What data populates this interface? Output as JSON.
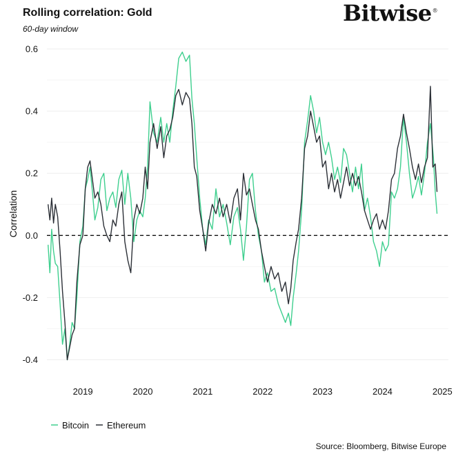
{
  "header": {
    "title": "Rolling correlation: Gold",
    "subtitle": "60-day window",
    "brand": "Bitwise",
    "brand_mark": "®"
  },
  "footer": {
    "source": "Source: Bloomberg, Bitwise Europe"
  },
  "colors": {
    "bitcoin": "#3ecf8e",
    "ethereum": "#2b2f36",
    "zero_line": "#111111",
    "grid": "#eeeeee"
  },
  "chart_data": {
    "type": "line",
    "title": "Rolling correlation: Gold",
    "subtitle": "60-day window",
    "ylabel": "Correlation",
    "xlabel": "",
    "xlim": [
      2018.4,
      2025.1
    ],
    "ylim": [
      -0.43,
      0.62
    ],
    "x_ticks": [
      2019,
      2020,
      2021,
      2022,
      2023,
      2024,
      2025
    ],
    "x_tick_labels": [
      "2019",
      "2020",
      "2021",
      "2022",
      "2023",
      "2024",
      "2025"
    ],
    "y_ticks": [
      0.6,
      0.4,
      0.2,
      0.0,
      -0.2,
      -0.4
    ],
    "y_tick_labels": [
      "0.6",
      "0.4",
      "0.2",
      "0.0",
      "-0.2",
      "-0.4"
    ],
    "reference_line": {
      "y": 0.0,
      "style": "dashed"
    },
    "grid": true,
    "legend": {
      "position": "bottom-left",
      "entries": [
        "Bitcoin",
        "Ethereum"
      ]
    },
    "series": [
      {
        "name": "Bitcoin",
        "color": "#3ecf8e",
        "points": [
          [
            2018.42,
            -0.03
          ],
          [
            2018.45,
            -0.12
          ],
          [
            2018.48,
            0.02
          ],
          [
            2018.51,
            -0.05
          ],
          [
            2018.54,
            -0.09
          ],
          [
            2018.58,
            -0.1
          ],
          [
            2018.62,
            -0.22
          ],
          [
            2018.66,
            -0.35
          ],
          [
            2018.7,
            -0.3
          ],
          [
            2018.74,
            -0.4
          ],
          [
            2018.78,
            -0.35
          ],
          [
            2018.82,
            -0.28
          ],
          [
            2018.86,
            -0.3
          ],
          [
            2018.9,
            -0.2
          ],
          [
            2018.95,
            -0.02
          ],
          [
            2019.0,
            0.03
          ],
          [
            2019.04,
            0.15
          ],
          [
            2019.08,
            0.18
          ],
          [
            2019.12,
            0.22
          ],
          [
            2019.16,
            0.14
          ],
          [
            2019.2,
            0.05
          ],
          [
            2019.25,
            0.09
          ],
          [
            2019.3,
            0.18
          ],
          [
            2019.35,
            0.2
          ],
          [
            2019.4,
            0.08
          ],
          [
            2019.45,
            0.12
          ],
          [
            2019.5,
            0.14
          ],
          [
            2019.55,
            0.09
          ],
          [
            2019.6,
            0.18
          ],
          [
            2019.65,
            0.21
          ],
          [
            2019.7,
            0.1
          ],
          [
            2019.75,
            0.2
          ],
          [
            2019.8,
            0.12
          ],
          [
            2019.85,
            -0.02
          ],
          [
            2019.9,
            0.05
          ],
          [
            2019.95,
            0.08
          ],
          [
            2020.0,
            0.06
          ],
          [
            2020.04,
            0.12
          ],
          [
            2020.08,
            0.22
          ],
          [
            2020.12,
            0.43
          ],
          [
            2020.18,
            0.33
          ],
          [
            2020.24,
            0.3
          ],
          [
            2020.3,
            0.38
          ],
          [
            2020.35,
            0.3
          ],
          [
            2020.4,
            0.36
          ],
          [
            2020.45,
            0.3
          ],
          [
            2020.5,
            0.4
          ],
          [
            2020.55,
            0.48
          ],
          [
            2020.6,
            0.57
          ],
          [
            2020.66,
            0.59
          ],
          [
            2020.72,
            0.56
          ],
          [
            2020.78,
            0.58
          ],
          [
            2020.82,
            0.44
          ],
          [
            2020.86,
            0.36
          ],
          [
            2020.9,
            0.25
          ],
          [
            2020.95,
            0.12
          ],
          [
            2021.0,
            0.02
          ],
          [
            2021.05,
            -0.03
          ],
          [
            2021.1,
            0.05
          ],
          [
            2021.16,
            0.02
          ],
          [
            2021.22,
            0.15
          ],
          [
            2021.28,
            0.06
          ],
          [
            2021.34,
            0.1
          ],
          [
            2021.4,
            0.04
          ],
          [
            2021.46,
            -0.03
          ],
          [
            2021.52,
            0.06
          ],
          [
            2021.58,
            0.09
          ],
          [
            2021.63,
            0.02
          ],
          [
            2021.68,
            -0.08
          ],
          [
            2021.73,
            0.03
          ],
          [
            2021.78,
            0.18
          ],
          [
            2021.83,
            0.2
          ],
          [
            2021.88,
            0.08
          ],
          [
            2021.93,
            0.0
          ],
          [
            2021.98,
            -0.05
          ],
          [
            2022.03,
            -0.15
          ],
          [
            2022.08,
            -0.12
          ],
          [
            2022.14,
            -0.18
          ],
          [
            2022.2,
            -0.17
          ],
          [
            2022.26,
            -0.22
          ],
          [
            2022.32,
            -0.25
          ],
          [
            2022.38,
            -0.28
          ],
          [
            2022.43,
            -0.25
          ],
          [
            2022.47,
            -0.29
          ],
          [
            2022.51,
            -0.2
          ],
          [
            2022.56,
            -0.12
          ],
          [
            2022.6,
            -0.05
          ],
          [
            2022.65,
            0.08
          ],
          [
            2022.7,
            0.3
          ],
          [
            2022.75,
            0.37
          ],
          [
            2022.8,
            0.45
          ],
          [
            2022.85,
            0.4
          ],
          [
            2022.9,
            0.33
          ],
          [
            2022.95,
            0.38
          ],
          [
            2023.0,
            0.3
          ],
          [
            2023.05,
            0.26
          ],
          [
            2023.1,
            0.3
          ],
          [
            2023.15,
            0.25
          ],
          [
            2023.2,
            0.18
          ],
          [
            2023.25,
            0.22
          ],
          [
            2023.3,
            0.17
          ],
          [
            2023.35,
            0.28
          ],
          [
            2023.4,
            0.26
          ],
          [
            2023.45,
            0.2
          ],
          [
            2023.5,
            0.14
          ],
          [
            2023.55,
            0.22
          ],
          [
            2023.6,
            0.15
          ],
          [
            2023.65,
            0.23
          ],
          [
            2023.7,
            0.08
          ],
          [
            2023.75,
            0.12
          ],
          [
            2023.8,
            0.06
          ],
          [
            2023.85,
            -0.02
          ],
          [
            2023.9,
            -0.05
          ],
          [
            2023.95,
            -0.1
          ],
          [
            2024.0,
            -0.02
          ],
          [
            2024.05,
            -0.05
          ],
          [
            2024.1,
            -0.03
          ],
          [
            2024.15,
            0.14
          ],
          [
            2024.2,
            0.12
          ],
          [
            2024.25,
            0.15
          ],
          [
            2024.3,
            0.22
          ],
          [
            2024.35,
            0.38
          ],
          [
            2024.4,
            0.3
          ],
          [
            2024.45,
            0.2
          ],
          [
            2024.5,
            0.12
          ],
          [
            2024.55,
            0.15
          ],
          [
            2024.6,
            0.19
          ],
          [
            2024.65,
            0.13
          ],
          [
            2024.7,
            0.2
          ],
          [
            2024.75,
            0.3
          ],
          [
            2024.8,
            0.36
          ],
          [
            2024.85,
            0.25
          ],
          [
            2024.88,
            0.14
          ],
          [
            2024.91,
            0.07
          ]
        ]
      },
      {
        "name": "Ethereum",
        "color": "#2b2f36",
        "points": [
          [
            2018.42,
            0.1
          ],
          [
            2018.45,
            0.05
          ],
          [
            2018.48,
            0.12
          ],
          [
            2018.51,
            0.04
          ],
          [
            2018.54,
            0.1
          ],
          [
            2018.58,
            0.06
          ],
          [
            2018.62,
            -0.05
          ],
          [
            2018.66,
            -0.18
          ],
          [
            2018.7,
            -0.28
          ],
          [
            2018.74,
            -0.4
          ],
          [
            2018.78,
            -0.36
          ],
          [
            2018.82,
            -0.32
          ],
          [
            2018.86,
            -0.3
          ],
          [
            2018.9,
            -0.15
          ],
          [
            2018.95,
            -0.03
          ],
          [
            2019.0,
            0.0
          ],
          [
            2019.04,
            0.15
          ],
          [
            2019.08,
            0.22
          ],
          [
            2019.12,
            0.24
          ],
          [
            2019.16,
            0.18
          ],
          [
            2019.2,
            0.12
          ],
          [
            2019.25,
            0.14
          ],
          [
            2019.3,
            0.1
          ],
          [
            2019.35,
            0.03
          ],
          [
            2019.4,
            0.0
          ],
          [
            2019.45,
            -0.02
          ],
          [
            2019.5,
            0.05
          ],
          [
            2019.55,
            0.03
          ],
          [
            2019.6,
            0.1
          ],
          [
            2019.65,
            0.14
          ],
          [
            2019.7,
            -0.02
          ],
          [
            2019.75,
            -0.08
          ],
          [
            2019.8,
            -0.12
          ],
          [
            2019.85,
            0.05
          ],
          [
            2019.9,
            0.1
          ],
          [
            2019.95,
            0.07
          ],
          [
            2020.0,
            0.12
          ],
          [
            2020.04,
            0.22
          ],
          [
            2020.08,
            0.15
          ],
          [
            2020.12,
            0.3
          ],
          [
            2020.18,
            0.36
          ],
          [
            2020.24,
            0.28
          ],
          [
            2020.3,
            0.35
          ],
          [
            2020.35,
            0.25
          ],
          [
            2020.4,
            0.32
          ],
          [
            2020.45,
            0.34
          ],
          [
            2020.5,
            0.38
          ],
          [
            2020.55,
            0.45
          ],
          [
            2020.6,
            0.47
          ],
          [
            2020.66,
            0.42
          ],
          [
            2020.72,
            0.46
          ],
          [
            2020.78,
            0.44
          ],
          [
            2020.82,
            0.36
          ],
          [
            2020.86,
            0.22
          ],
          [
            2020.9,
            0.19
          ],
          [
            2020.95,
            0.08
          ],
          [
            2021.0,
            0.02
          ],
          [
            2021.05,
            -0.05
          ],
          [
            2021.1,
            0.04
          ],
          [
            2021.16,
            0.1
          ],
          [
            2021.22,
            0.07
          ],
          [
            2021.28,
            0.12
          ],
          [
            2021.34,
            0.06
          ],
          [
            2021.4,
            0.1
          ],
          [
            2021.46,
            0.04
          ],
          [
            2021.52,
            0.12
          ],
          [
            2021.58,
            0.15
          ],
          [
            2021.63,
            0.05
          ],
          [
            2021.68,
            0.2
          ],
          [
            2021.73,
            0.13
          ],
          [
            2021.78,
            0.15
          ],
          [
            2021.83,
            0.1
          ],
          [
            2021.88,
            0.05
          ],
          [
            2021.93,
            0.02
          ],
          [
            2021.98,
            -0.05
          ],
          [
            2022.03,
            -0.1
          ],
          [
            2022.08,
            -0.15
          ],
          [
            2022.14,
            -0.1
          ],
          [
            2022.2,
            -0.14
          ],
          [
            2022.26,
            -0.12
          ],
          [
            2022.32,
            -0.18
          ],
          [
            2022.38,
            -0.15
          ],
          [
            2022.43,
            -0.22
          ],
          [
            2022.47,
            -0.17
          ],
          [
            2022.51,
            -0.08
          ],
          [
            2022.56,
            -0.02
          ],
          [
            2022.6,
            0.02
          ],
          [
            2022.65,
            0.12
          ],
          [
            2022.7,
            0.28
          ],
          [
            2022.75,
            0.32
          ],
          [
            2022.8,
            0.4
          ],
          [
            2022.85,
            0.35
          ],
          [
            2022.9,
            0.3
          ],
          [
            2022.95,
            0.32
          ],
          [
            2023.0,
            0.22
          ],
          [
            2023.05,
            0.24
          ],
          [
            2023.1,
            0.15
          ],
          [
            2023.15,
            0.2
          ],
          [
            2023.2,
            0.14
          ],
          [
            2023.25,
            0.18
          ],
          [
            2023.3,
            0.12
          ],
          [
            2023.35,
            0.17
          ],
          [
            2023.4,
            0.22
          ],
          [
            2023.45,
            0.16
          ],
          [
            2023.5,
            0.2
          ],
          [
            2023.55,
            0.16
          ],
          [
            2023.6,
            0.19
          ],
          [
            2023.65,
            0.14
          ],
          [
            2023.7,
            0.08
          ],
          [
            2023.75,
            0.05
          ],
          [
            2023.8,
            0.02
          ],
          [
            2023.85,
            0.05
          ],
          [
            2023.9,
            0.07
          ],
          [
            2023.95,
            0.02
          ],
          [
            2024.0,
            0.05
          ],
          [
            2024.05,
            0.02
          ],
          [
            2024.1,
            0.08
          ],
          [
            2024.15,
            0.18
          ],
          [
            2024.2,
            0.2
          ],
          [
            2024.25,
            0.28
          ],
          [
            2024.3,
            0.32
          ],
          [
            2024.35,
            0.39
          ],
          [
            2024.4,
            0.33
          ],
          [
            2024.45,
            0.28
          ],
          [
            2024.5,
            0.22
          ],
          [
            2024.55,
            0.18
          ],
          [
            2024.6,
            0.23
          ],
          [
            2024.65,
            0.17
          ],
          [
            2024.7,
            0.22
          ],
          [
            2024.75,
            0.25
          ],
          [
            2024.8,
            0.48
          ],
          [
            2024.84,
            0.22
          ],
          [
            2024.88,
            0.23
          ],
          [
            2024.91,
            0.14
          ]
        ]
      }
    ]
  }
}
